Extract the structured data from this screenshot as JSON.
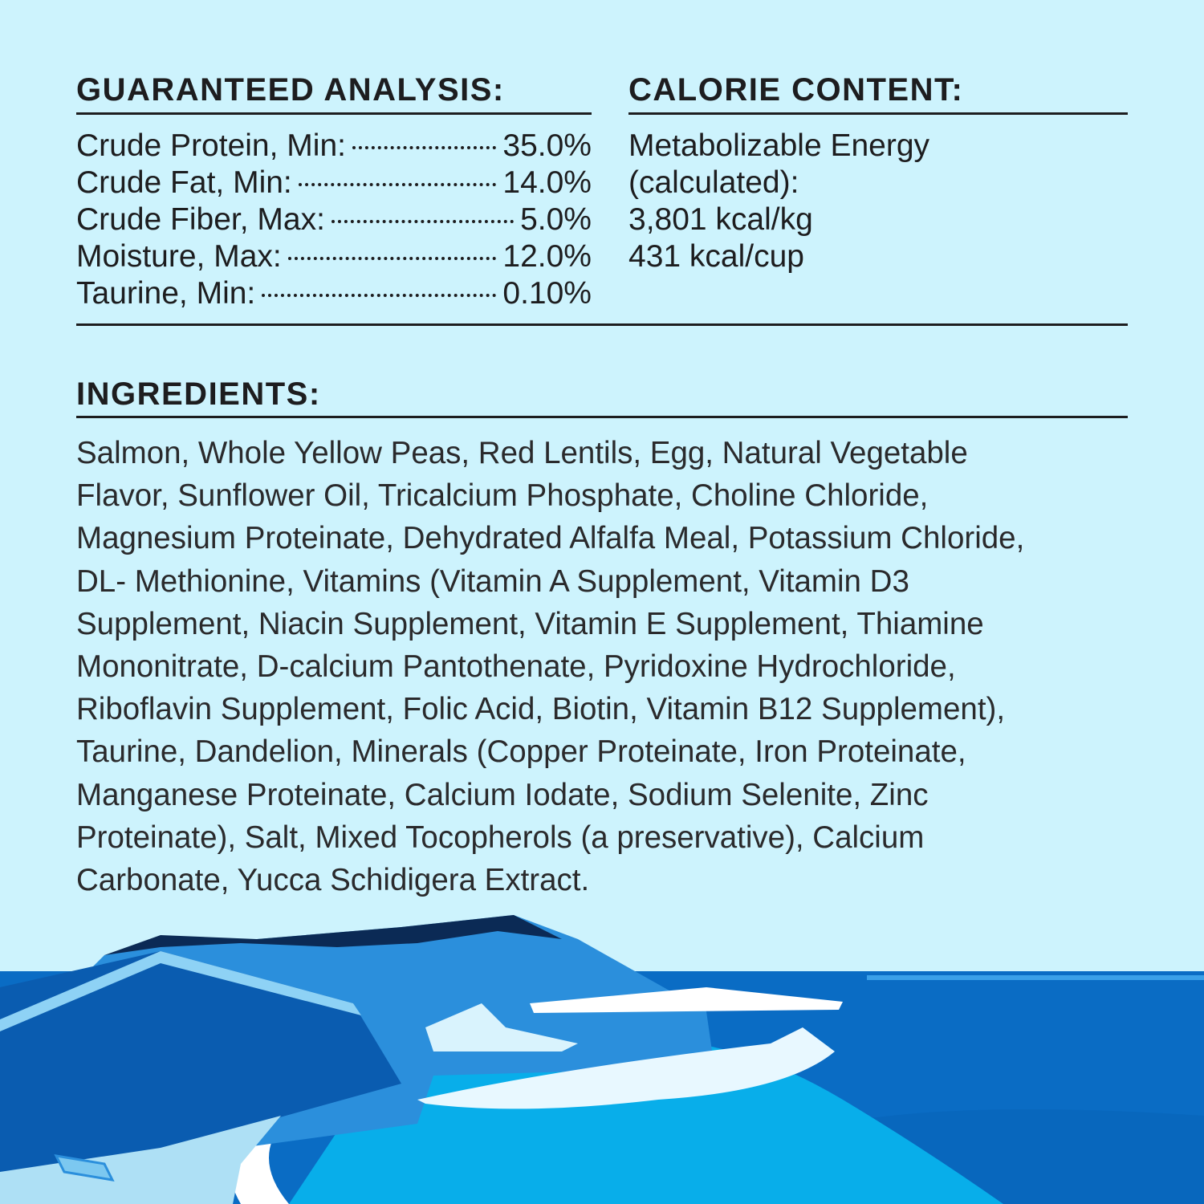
{
  "guaranteed_analysis": {
    "heading": "GUARANTEED ANALYSIS:",
    "rows": [
      {
        "label": "Crude Protein, Min:",
        "value": "35.0%"
      },
      {
        "label": "Crude Fat, Min:",
        "value": "14.0%"
      },
      {
        "label": "Crude Fiber, Max:",
        "value": "5.0%"
      },
      {
        "label": "Moisture, Max:",
        "value": "12.0%"
      },
      {
        "label": "Taurine, Min:",
        "value": "0.10%"
      }
    ]
  },
  "calorie_content": {
    "heading": "CALORIE CONTENT:",
    "lines": [
      "Metabolizable Energy",
      "(calculated):",
      "3,801 kcal/kg",
      "431 kcal/cup"
    ]
  },
  "ingredients": {
    "heading": "INGREDIENTS:",
    "lines": [
      "Salmon, Whole Yellow Peas, Red Lentils, Egg, Natural Vegetable",
      "Flavor, Sunflower Oil, Tricalcium Phosphate, Choline Chloride,",
      "Magnesium Proteinate, Dehydrated Alfalfa Meal, Potassium Chloride,",
      "DL- Methionine, Vitamins (Vitamin A Supplement, Vitamin D3",
      "Supplement, Niacin Supplement, Vitamin E Supplement, Thiamine",
      "Mononitrate, D-calcium Pantothenate, Pyridoxine Hydrochloride,",
      "Riboflavin Supplement, Folic Acid, Biotin, Vitamin B12 Supplement),",
      "Taurine, Dandelion, Minerals (Copper Proteinate, Iron Proteinate,",
      "Manganese Proteinate, Calcium Iodate, Sodium Selenite, Zinc",
      "Proteinate), Salt, Mixed Tocopherols (a preservative), Calcium",
      "Carbonate, Yucca Schidigera Extract."
    ]
  },
  "colors": {
    "background": "#cdf3fd",
    "text": "#1d1d1f",
    "sea": "#0a6cc4",
    "lagoon": "#08aeea"
  }
}
